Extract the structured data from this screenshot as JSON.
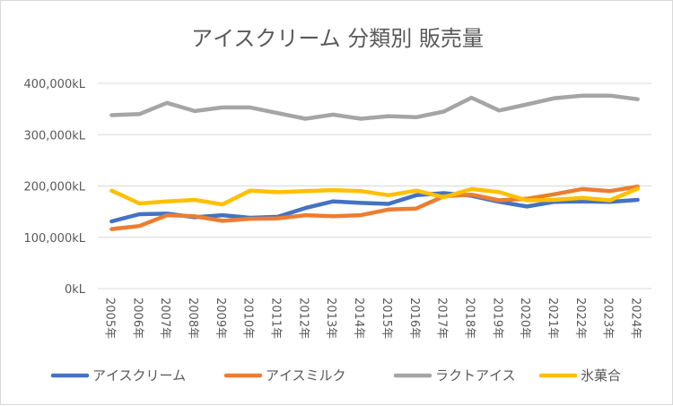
{
  "chart_data": {
    "type": "line",
    "title": "アイスクリーム 分類別 販売量",
    "xlabel": "",
    "ylabel": "",
    "categories": [
      "2005年",
      "2006年",
      "2007年",
      "2008年",
      "2009年",
      "2010年",
      "2011年",
      "2012年",
      "2013年",
      "2014年",
      "2015年",
      "2016年",
      "2017年",
      "2018年",
      "2019年",
      "2020年",
      "2021年",
      "2022年",
      "2023年",
      "2024年"
    ],
    "ylim": [
      0,
      400000
    ],
    "yticks": [
      {
        "value": 0,
        "label": "0kL"
      },
      {
        "value": 100000,
        "label": "100,000kL"
      },
      {
        "value": 200000,
        "label": "200,000kL"
      },
      {
        "value": 300000,
        "label": "300,000kL"
      },
      {
        "value": 400000,
        "label": "400,000kL"
      }
    ],
    "grid": true,
    "legend_position": "bottom",
    "series": [
      {
        "name": "アイスクリーム",
        "color": "#4472c4",
        "values": [
          131000,
          145000,
          146000,
          139000,
          143000,
          138000,
          140000,
          157000,
          170000,
          167000,
          165000,
          182000,
          186000,
          181000,
          169000,
          160000,
          169000,
          170000,
          169000,
          173000
        ]
      },
      {
        "name": "アイスミルク",
        "color": "#ed7d31",
        "values": [
          116000,
          122000,
          143000,
          141000,
          132000,
          136000,
          137000,
          143000,
          141000,
          143000,
          154000,
          156000,
          180000,
          183000,
          172000,
          175000,
          184000,
          194000,
          190000,
          199000
        ]
      },
      {
        "name": "ラクトアイス",
        "color": "#a5a5a5",
        "values": [
          338000,
          340000,
          362000,
          346000,
          353000,
          353000,
          342000,
          331000,
          339000,
          331000,
          336000,
          334000,
          345000,
          372000,
          347000,
          359000,
          371000,
          376000,
          376000,
          369000
        ]
      },
      {
        "name": "氷菓合",
        "color": "#ffc000",
        "values": [
          191000,
          166000,
          170000,
          173000,
          164000,
          191000,
          188000,
          190000,
          192000,
          190000,
          182000,
          191000,
          178000,
          194000,
          188000,
          172000,
          173000,
          177000,
          172000,
          195000
        ]
      }
    ]
  }
}
